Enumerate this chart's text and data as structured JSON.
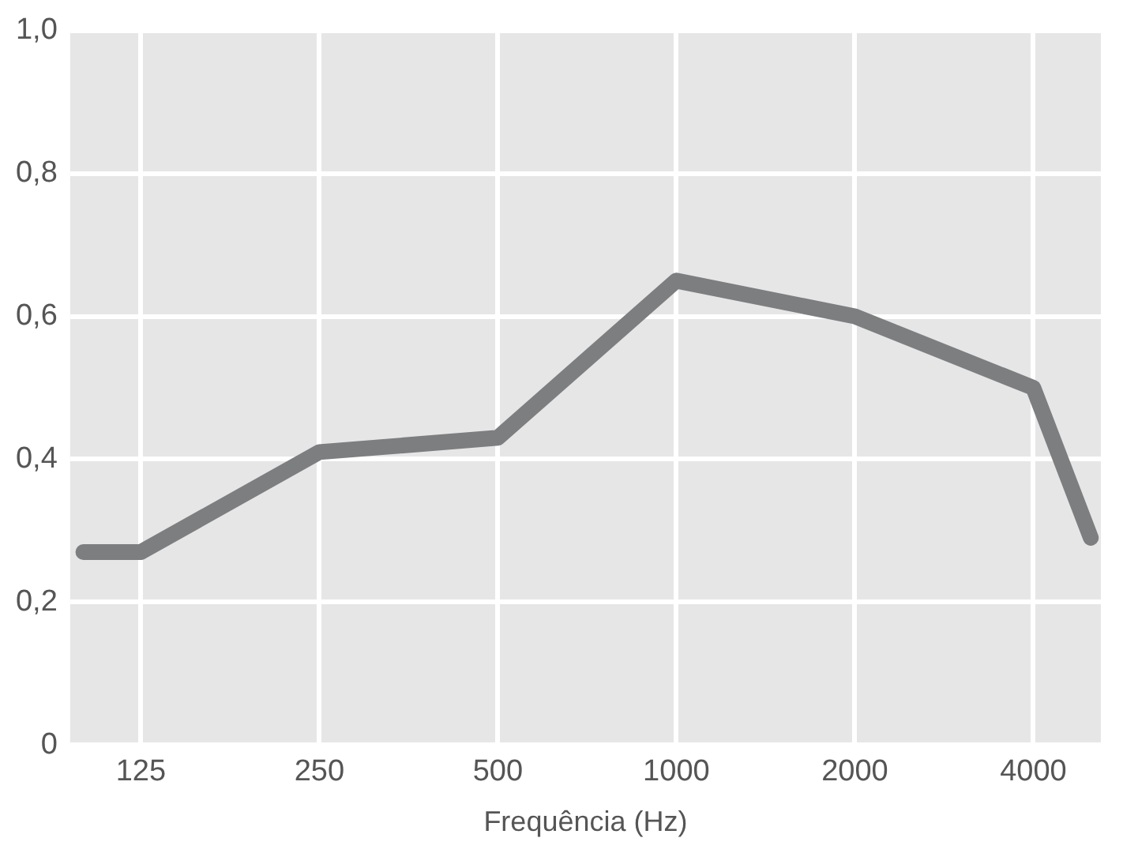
{
  "chart_data": {
    "type": "line",
    "xlabel": "Frequência (Hz)",
    "x": [
      100,
      125,
      250,
      500,
      1000,
      2000,
      4000,
      5000
    ],
    "series": [
      {
        "color": "#7d7e80",
        "values": [
          0.27,
          0.27,
          0.41,
          0.43,
          0.65,
          0.6,
          0.5,
          0.29
        ]
      }
    ],
    "log": "x",
    "xlim": [
      95,
      5200
    ],
    "xticks": [
      125,
      250,
      500,
      1000,
      2000,
      4000
    ],
    "ylim": [
      0,
      1
    ],
    "yticks": [
      {
        "value": 0,
        "label": "0"
      },
      {
        "value": 0.2,
        "label": "0,2"
      },
      {
        "value": 0.4,
        "label": "0,4"
      },
      {
        "value": 0.6,
        "label": "0,6"
      },
      {
        "value": 0.8,
        "label": "0,8"
      },
      {
        "value": 1,
        "label": "1,0"
      }
    ],
    "grid": true,
    "legend": false,
    "marker": "none",
    "line_style": "solid"
  }
}
